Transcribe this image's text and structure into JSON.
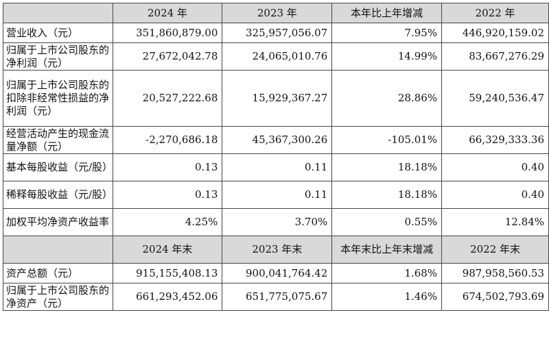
{
  "table": {
    "header_top": {
      "corner": "",
      "cols": [
        "2024 年",
        "2023 年",
        "本年比上年增减",
        "2022 年"
      ]
    },
    "rows_top": [
      {
        "label": "营业收入（元）",
        "values": [
          "351,860,879.00",
          "325,957,056.07",
          "7.95%",
          "446,920,159.02"
        ]
      },
      {
        "label": "归属于上市公司股东的净利润（元）",
        "values": [
          "27,672,042.78",
          "24,065,010.76",
          "14.99%",
          "83,667,276.29"
        ]
      },
      {
        "label": "归属于上市公司股东的扣除非经常性损益的净利润（元）",
        "values": [
          "20,527,222.68",
          "15,929,367.27",
          "28.86%",
          "59,240,536.47"
        ]
      },
      {
        "label": "经营活动产生的现金流量净额（元）",
        "values": [
          "-2,270,686.18",
          "45,367,300.26",
          "-105.01%",
          "66,329,333.36"
        ]
      },
      {
        "label": "基本每股收益（元/股）",
        "values": [
          "0.13",
          "0.11",
          "18.18%",
          "0.40"
        ]
      },
      {
        "label": "稀释每股收益（元/股）",
        "values": [
          "0.13",
          "0.11",
          "18.18%",
          "0.40"
        ]
      },
      {
        "label": "加权平均净资产收益率",
        "values": [
          "4.25%",
          "3.70%",
          "0.55%",
          "12.84%"
        ]
      }
    ],
    "header_bottom": {
      "corner": "",
      "cols": [
        "2024 年末",
        "2023 年末",
        "本年末比上年末增减",
        "2022 年末"
      ]
    },
    "rows_bottom": [
      {
        "label": "资产总额（元）",
        "values": [
          "915,155,408.13",
          "900,041,764.42",
          "1.68%",
          "987,958,560.53"
        ]
      },
      {
        "label": "归属于上市公司股东的净资产（元）",
        "values": [
          "661,293,452.06",
          "651,775,075.67",
          "1.46%",
          "674,502,793.69"
        ]
      }
    ]
  }
}
